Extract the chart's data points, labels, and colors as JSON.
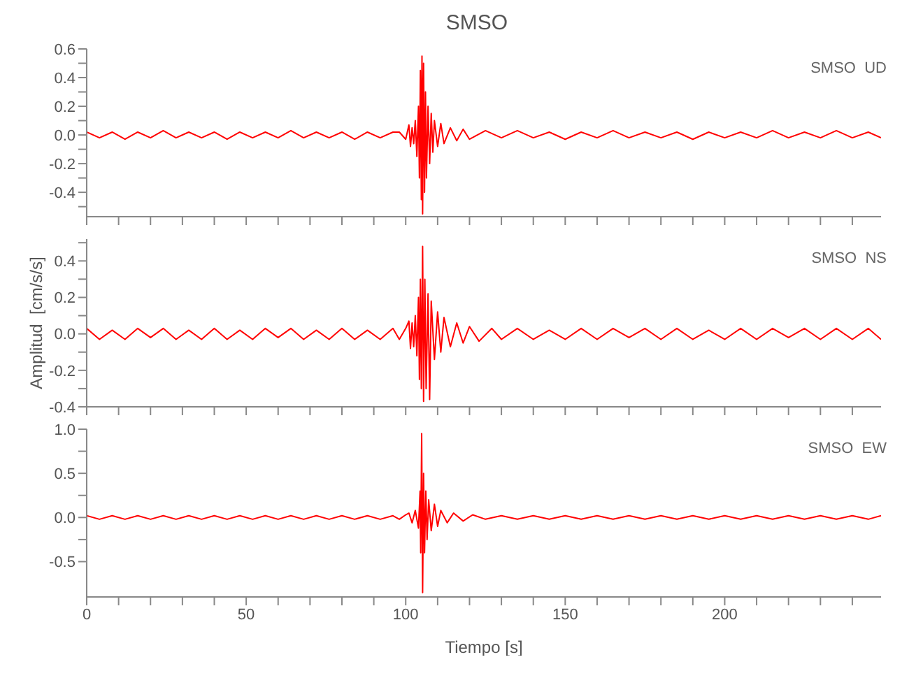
{
  "chart_data": [
    {
      "type": "line",
      "title": "SMSO",
      "annotations": [
        "SMSO  UD"
      ],
      "tick_labels": "y",
      "xlim": [
        0,
        249
      ],
      "xticks": [
        0,
        {
          "value": 10,
          "label": null
        },
        {
          "value": 20,
          "label": null
        },
        {
          "value": 30,
          "label": null
        },
        {
          "value": 40,
          "label": null
        },
        50,
        {
          "value": 60,
          "label": null
        },
        {
          "value": 70,
          "label": null
        },
        {
          "value": 80,
          "label": null
        },
        {
          "value": 90,
          "label": null
        },
        100,
        {
          "value": 110,
          "label": null
        },
        {
          "value": 120,
          "label": null
        },
        {
          "value": 130,
          "label": null
        },
        {
          "value": 140,
          "label": null
        },
        150,
        {
          "value": 160,
          "label": null
        },
        {
          "value": 170,
          "label": null
        },
        {
          "value": 180,
          "label": null
        },
        {
          "value": 190,
          "label": null
        },
        200,
        {
          "value": 210,
          "label": null
        },
        {
          "value": 220,
          "label": null
        },
        {
          "value": 230,
          "label": null
        },
        {
          "value": 240,
          "label": null
        }
      ],
      "ylim": [
        -0.57,
        0.6
      ],
      "yticks": [
        {
          "value": -0.5,
          "label": null
        },
        -0.4,
        {
          "value": -0.3,
          "label": null
        },
        -0.2,
        {
          "value": -0.1,
          "label": null
        },
        {
          "value": 0,
          "label": "0.0"
        },
        {
          "value": 0.1,
          "label": null
        },
        0.2,
        {
          "value": 0.3,
          "label": null
        },
        0.4,
        {
          "value": 0.5,
          "label": null
        },
        0.6
      ],
      "series": [
        {
          "color": "#ff0000",
          "x": [
            0,
            4,
            8,
            12,
            16,
            20,
            24,
            28,
            32,
            36,
            40,
            44,
            48,
            52,
            56,
            60,
            64,
            68,
            72,
            76,
            80,
            84,
            88,
            92,
            96,
            98,
            100,
            101,
            101.5,
            102,
            102.5,
            103,
            103.5,
            104,
            104.3,
            104.6,
            104.9,
            105.1,
            105.3,
            105.6,
            105.9,
            106.2,
            106.5,
            107,
            107.5,
            108,
            108.5,
            109,
            110,
            111,
            112,
            114,
            116,
            118,
            120,
            125,
            130,
            135,
            140,
            145,
            150,
            155,
            160,
            165,
            170,
            175,
            180,
            185,
            190,
            195,
            200,
            205,
            210,
            215,
            220,
            225,
            230,
            235,
            240,
            245,
            249
          ],
          "values": [
            0.02,
            -0.02,
            0.02,
            -0.03,
            0.02,
            -0.02,
            0.03,
            -0.02,
            0.02,
            -0.02,
            0.02,
            -0.03,
            0.02,
            -0.02,
            0.02,
            -0.02,
            0.03,
            -0.02,
            0.02,
            -0.02,
            0.02,
            -0.03,
            0.02,
            -0.02,
            0.02,
            0.02,
            -0.03,
            0.07,
            -0.08,
            0.05,
            -0.06,
            0.1,
            -0.15,
            0.2,
            -0.3,
            0.45,
            -0.45,
            0.55,
            -0.55,
            0.5,
            -0.4,
            0.3,
            -0.3,
            0.2,
            -0.2,
            0.15,
            -0.12,
            0.1,
            -0.08,
            0.08,
            -0.06,
            0.05,
            -0.04,
            0.04,
            -0.03,
            0.03,
            -0.02,
            0.03,
            -0.02,
            0.02,
            -0.03,
            0.02,
            -0.02,
            0.03,
            -0.02,
            0.02,
            -0.02,
            0.02,
            -0.03,
            0.02,
            -0.02,
            0.02,
            -0.02,
            0.03,
            -0.02,
            0.02,
            -0.02,
            0.03,
            -0.02,
            0.02,
            -0.02
          ]
        }
      ]
    },
    {
      "type": "line",
      "ylabel": "Amplitud  [cm/s/s]",
      "annotations": [
        "SMSO  NS"
      ],
      "tick_labels": "y",
      "xlim": [
        0,
        249
      ],
      "xticks": [
        0,
        {
          "value": 10,
          "label": null
        },
        {
          "value": 20,
          "label": null
        },
        {
          "value": 30,
          "label": null
        },
        {
          "value": 40,
          "label": null
        },
        50,
        {
          "value": 60,
          "label": null
        },
        {
          "value": 70,
          "label": null
        },
        {
          "value": 80,
          "label": null
        },
        {
          "value": 90,
          "label": null
        },
        100,
        {
          "value": 110,
          "label": null
        },
        {
          "value": 120,
          "label": null
        },
        {
          "value": 130,
          "label": null
        },
        {
          "value": 140,
          "label": null
        },
        150,
        {
          "value": 160,
          "label": null
        },
        {
          "value": 170,
          "label": null
        },
        {
          "value": 180,
          "label": null
        },
        {
          "value": 190,
          "label": null
        },
        200,
        {
          "value": 210,
          "label": null
        },
        {
          "value": 220,
          "label": null
        },
        {
          "value": 230,
          "label": null
        },
        {
          "value": 240,
          "label": null
        }
      ],
      "ylim": [
        -0.4,
        0.52
      ],
      "yticks": [
        -0.4,
        {
          "value": -0.3,
          "label": null
        },
        -0.2,
        {
          "value": -0.1,
          "label": null
        },
        {
          "value": 0,
          "label": "0.0"
        },
        {
          "value": 0.1,
          "label": null
        },
        0.2,
        {
          "value": 0.3,
          "label": null
        },
        0.4,
        {
          "value": 0.5,
          "label": null
        }
      ],
      "series": [
        {
          "color": "#ff0000",
          "x": [
            0,
            4,
            8,
            12,
            16,
            20,
            24,
            28,
            32,
            36,
            40,
            44,
            48,
            52,
            56,
            60,
            64,
            68,
            72,
            76,
            80,
            84,
            88,
            92,
            96,
            98,
            100,
            101,
            101.5,
            102,
            102.5,
            103,
            103.5,
            104,
            104.3,
            104.6,
            104.9,
            105.3,
            105.6,
            106,
            106.4,
            107,
            107.5,
            108,
            109,
            110,
            111,
            112,
            114,
            116,
            118,
            120,
            123,
            127,
            130,
            135,
            140,
            145,
            150,
            155,
            160,
            165,
            170,
            175,
            180,
            185,
            190,
            195,
            200,
            205,
            210,
            215,
            220,
            225,
            230,
            235,
            240,
            245,
            249
          ],
          "values": [
            0.03,
            -0.03,
            0.02,
            -0.03,
            0.03,
            -0.02,
            0.03,
            -0.03,
            0.02,
            -0.03,
            0.03,
            -0.03,
            0.02,
            -0.03,
            0.03,
            -0.02,
            0.03,
            -0.03,
            0.02,
            -0.03,
            0.03,
            -0.03,
            0.02,
            -0.03,
            0.03,
            -0.03,
            0.03,
            0.07,
            -0.08,
            0.06,
            -0.07,
            0.1,
            -0.12,
            0.2,
            -0.25,
            0.3,
            -0.3,
            0.48,
            -0.37,
            0.3,
            -0.3,
            0.22,
            -0.36,
            0.18,
            -0.14,
            0.12,
            -0.1,
            0.09,
            -0.07,
            0.06,
            -0.05,
            0.04,
            -0.04,
            0.03,
            -0.03,
            0.03,
            -0.03,
            0.02,
            -0.03,
            0.03,
            -0.03,
            0.03,
            -0.02,
            0.03,
            -0.03,
            0.03,
            -0.03,
            0.02,
            -0.03,
            0.03,
            -0.03,
            0.03,
            -0.02,
            0.03,
            -0.03,
            0.03,
            -0.03,
            0.03,
            -0.03
          ]
        }
      ]
    },
    {
      "type": "line",
      "xlabel": "Tiempo  [s]",
      "annotations": [
        "SMSO  EW"
      ],
      "xlim": [
        0,
        249
      ],
      "xticks": [
        0,
        {
          "value": 10,
          "label": null
        },
        {
          "value": 20,
          "label": null
        },
        {
          "value": 30,
          "label": null
        },
        {
          "value": 40,
          "label": null
        },
        50,
        {
          "value": 60,
          "label": null
        },
        {
          "value": 70,
          "label": null
        },
        {
          "value": 80,
          "label": null
        },
        {
          "value": 90,
          "label": null
        },
        100,
        {
          "value": 110,
          "label": null
        },
        {
          "value": 120,
          "label": null
        },
        {
          "value": 130,
          "label": null
        },
        {
          "value": 140,
          "label": null
        },
        150,
        {
          "value": 160,
          "label": null
        },
        {
          "value": 170,
          "label": null
        },
        {
          "value": 180,
          "label": null
        },
        {
          "value": 190,
          "label": null
        },
        200,
        {
          "value": 210,
          "label": null
        },
        {
          "value": 220,
          "label": null
        },
        {
          "value": 230,
          "label": null
        },
        {
          "value": 240,
          "label": null
        }
      ],
      "ylim": [
        -0.9,
        1.0
      ],
      "yticks": [
        -0.5,
        {
          "value": -0.25,
          "label": null
        },
        {
          "value": 0,
          "label": "0.0"
        },
        {
          "value": 0.25,
          "label": null
        },
        0.5,
        {
          "value": 0.75,
          "label": null
        },
        {
          "value": 1,
          "label": "1.0"
        }
      ],
      "series": [
        {
          "color": "#ff0000",
          "x": [
            0,
            4,
            8,
            12,
            16,
            20,
            24,
            28,
            32,
            36,
            40,
            44,
            48,
            52,
            56,
            60,
            64,
            68,
            72,
            76,
            80,
            84,
            88,
            92,
            96,
            98,
            100,
            101,
            102,
            103,
            104,
            104.5,
            104.7,
            105,
            105.3,
            105.6,
            105.9,
            106.3,
            106.7,
            107.2,
            108,
            109,
            110,
            111,
            113,
            115,
            118,
            121,
            125,
            130,
            135,
            140,
            145,
            150,
            155,
            160,
            165,
            170,
            175,
            180,
            185,
            190,
            195,
            200,
            205,
            210,
            215,
            220,
            225,
            230,
            235,
            240,
            245,
            249
          ],
          "values": [
            0.02,
            -0.02,
            0.02,
            -0.02,
            0.02,
            -0.02,
            0.02,
            -0.02,
            0.02,
            -0.02,
            0.02,
            -0.02,
            0.02,
            -0.02,
            0.02,
            -0.02,
            0.02,
            -0.02,
            0.02,
            -0.02,
            0.02,
            -0.02,
            0.02,
            -0.02,
            0.02,
            -0.02,
            0.03,
            0.05,
            -0.06,
            0.08,
            -0.12,
            0.3,
            -0.4,
            0.95,
            -0.85,
            0.5,
            -0.4,
            0.3,
            -0.25,
            0.2,
            -0.15,
            0.15,
            -0.1,
            0.08,
            -0.06,
            0.05,
            -0.04,
            0.03,
            -0.02,
            0.02,
            -0.02,
            0.02,
            -0.02,
            0.02,
            -0.02,
            0.02,
            -0.02,
            0.02,
            -0.02,
            0.02,
            -0.02,
            0.02,
            -0.02,
            0.02,
            -0.02,
            0.02,
            -0.02,
            0.02,
            -0.02,
            0.02,
            -0.02,
            0.02,
            -0.02,
            0.02
          ]
        }
      ]
    }
  ]
}
